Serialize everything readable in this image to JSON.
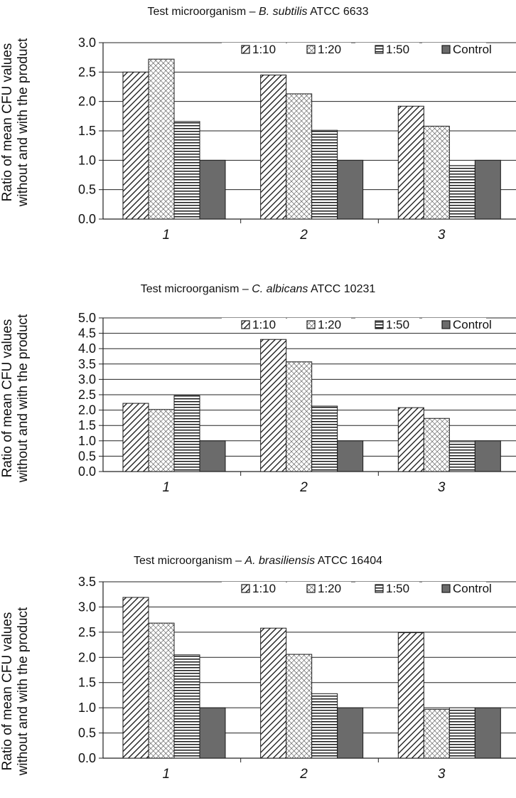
{
  "chart_data": [
    {
      "type": "bar",
      "title_prefix": "Test microorganism – ",
      "title_species": "B. subtilis",
      "title_suffix": " ATCC 6633",
      "ylabel_line1": "Ratio of mean CFU values",
      "ylabel_line2": "without and with the product",
      "categories": [
        "1",
        "2",
        "3"
      ],
      "ylim": [
        0,
        3.0
      ],
      "yticks": [
        "0.0",
        "0.5",
        "1.0",
        "1.5",
        "2.0",
        "2.5",
        "3.0"
      ],
      "grid": true,
      "legend_position": "top-right",
      "series": [
        {
          "name": "1:10",
          "values": [
            2.5,
            2.45,
            1.92
          ]
        },
        {
          "name": "1:20",
          "values": [
            2.72,
            2.13,
            1.58
          ]
        },
        {
          "name": "1:50",
          "values": [
            1.66,
            1.51,
            0.91
          ]
        },
        {
          "name": "Control",
          "values": [
            1.0,
            1.0,
            1.0
          ]
        }
      ]
    },
    {
      "type": "bar",
      "title_prefix": "Test microorganism – ",
      "title_species": "C. albicans",
      "title_suffix": " ATCC 10231",
      "ylabel_line1": "Ratio of mean CFU values",
      "ylabel_line2": "without and with the product",
      "categories": [
        "1",
        "2",
        "3"
      ],
      "ylim": [
        0,
        5.0
      ],
      "yticks": [
        "0.0",
        "0.5",
        "1.0",
        "1.5",
        "2.0",
        "2.5",
        "3.0",
        "3.5",
        "4.0",
        "4.5",
        "5.0"
      ],
      "grid": true,
      "legend_position": "top-right",
      "series": [
        {
          "name": "1:10",
          "values": [
            2.22,
            4.3,
            2.08
          ]
        },
        {
          "name": "1:20",
          "values": [
            2.02,
            3.57,
            1.73
          ]
        },
        {
          "name": "1:50",
          "values": [
            2.47,
            2.13,
            0.97
          ]
        },
        {
          "name": "Control",
          "values": [
            1.0,
            1.0,
            1.0
          ]
        }
      ]
    },
    {
      "type": "bar",
      "title_prefix": "Test microorganism – ",
      "title_species": "A. brasiliensis",
      "title_suffix": " ATCC 16404",
      "ylabel_line1": "Ratio of mean CFU values",
      "ylabel_line2": "without and with the product",
      "categories": [
        "1",
        "2",
        "3"
      ],
      "ylim": [
        0,
        3.5
      ],
      "yticks": [
        "0.0",
        "0.5",
        "1.0",
        "1.5",
        "2.0",
        "2.5",
        "3.0",
        "3.5"
      ],
      "grid": true,
      "legend_position": "top-right",
      "series": [
        {
          "name": "1:10",
          "values": [
            3.19,
            2.58,
            2.49
          ]
        },
        {
          "name": "1:20",
          "values": [
            2.68,
            2.06,
            0.97
          ]
        },
        {
          "name": "1:50",
          "values": [
            2.05,
            1.28,
            1.0
          ]
        },
        {
          "name": "Control",
          "values": [
            1.0,
            1.0,
            1.0
          ]
        }
      ]
    }
  ],
  "colors": {
    "bar_stroke": "#1a1a1a",
    "control_fill": "#6b6b6b",
    "grid": "#222222",
    "background": "#ffffff"
  }
}
